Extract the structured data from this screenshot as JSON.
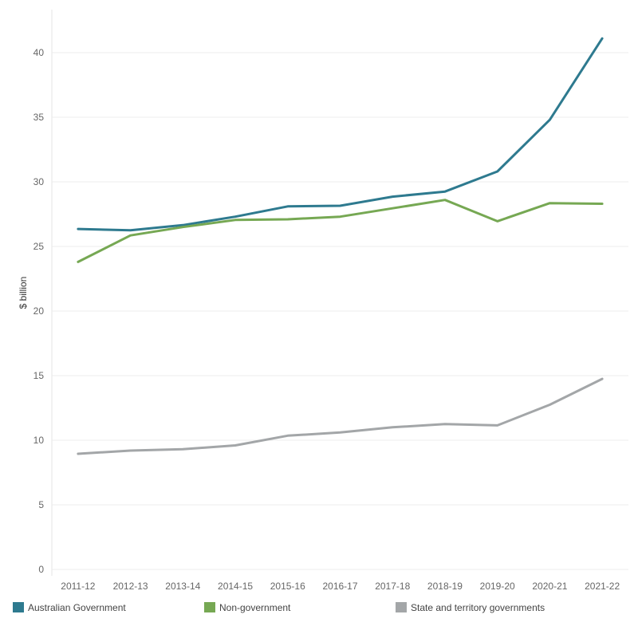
{
  "chart_data": {
    "type": "line",
    "title": "",
    "xlabel": "",
    "ylabel": "$ billion",
    "ylim": [
      0,
      42
    ],
    "yticks": [
      0,
      5,
      10,
      15,
      20,
      25,
      30,
      35,
      40
    ],
    "grid": true,
    "legend_position": "bottom",
    "categories": [
      "2011-12",
      "2012-13",
      "2013-14",
      "2014-15",
      "2015-16",
      "2016-17",
      "2017-18",
      "2018-19",
      "2019-20",
      "2020-21",
      "2021-22"
    ],
    "series": [
      {
        "name": "Australian Government",
        "color": "#2e7a8f",
        "values": [
          26.35,
          26.25,
          26.65,
          27.3,
          28.1,
          28.15,
          28.85,
          29.25,
          30.8,
          34.8,
          41.1
        ]
      },
      {
        "name": "Non-government",
        "color": "#76a853",
        "values": [
          23.8,
          25.85,
          26.5,
          27.05,
          27.1,
          27.3,
          27.95,
          28.6,
          26.95,
          28.35,
          28.3
        ]
      },
      {
        "name": "State and territory governments",
        "color": "#a3a6a8",
        "values": [
          8.95,
          9.2,
          9.3,
          9.6,
          10.35,
          10.6,
          11.0,
          11.25,
          11.15,
          12.75,
          14.75
        ]
      }
    ]
  }
}
